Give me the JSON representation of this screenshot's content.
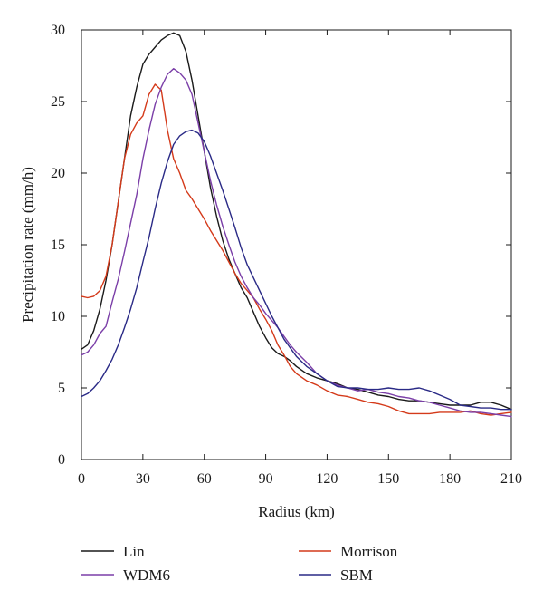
{
  "chart_data": {
    "type": "line",
    "title": "",
    "xlabel": "Radius (km)",
    "ylabel": "Precipitation rate (mm/h)",
    "xlim": [
      0,
      210
    ],
    "ylim": [
      0,
      30
    ],
    "xticks": [
      0,
      30,
      60,
      90,
      120,
      150,
      180,
      210
    ],
    "yticks": [
      0,
      5,
      10,
      15,
      20,
      25,
      30
    ],
    "grid": false,
    "legend_placement": "bottom",
    "series": [
      {
        "name": "Lin",
        "color": "#1a1a1a",
        "x": [
          0,
          3,
          6,
          9,
          12,
          15,
          18,
          21,
          24,
          27,
          30,
          33,
          36,
          39,
          42,
          45,
          48,
          51,
          54,
          57,
          60,
          63,
          66,
          69,
          72,
          75,
          78,
          81,
          84,
          87,
          90,
          93,
          96,
          99,
          102,
          105,
          110,
          115,
          120,
          125,
          130,
          135,
          140,
          145,
          150,
          155,
          160,
          165,
          170,
          175,
          180,
          185,
          190,
          195,
          200,
          205,
          210
        ],
        "y": [
          7.7,
          8.0,
          9.0,
          10.5,
          12.5,
          15.0,
          18.0,
          21.0,
          24.0,
          26.0,
          27.6,
          28.3,
          28.8,
          29.3,
          29.6,
          29.8,
          29.6,
          28.5,
          26.5,
          24.0,
          21.5,
          19.0,
          17.0,
          15.3,
          14.0,
          13.0,
          12.0,
          11.3,
          10.3,
          9.3,
          8.5,
          7.8,
          7.4,
          7.2,
          6.9,
          6.5,
          6.0,
          5.7,
          5.5,
          5.3,
          5.0,
          4.9,
          4.7,
          4.5,
          4.4,
          4.2,
          4.1,
          4.1,
          4.0,
          3.9,
          3.8,
          3.8,
          3.8,
          4.0,
          4.0,
          3.8,
          3.5
        ]
      },
      {
        "name": "Morrison",
        "color": "#d43a1a",
        "x": [
          0,
          3,
          6,
          9,
          12,
          15,
          18,
          21,
          24,
          27,
          30,
          33,
          36,
          39,
          42,
          45,
          48,
          51,
          54,
          57,
          60,
          63,
          66,
          69,
          72,
          75,
          78,
          81,
          84,
          87,
          90,
          93,
          96,
          99,
          102,
          105,
          110,
          115,
          120,
          125,
          130,
          135,
          140,
          145,
          150,
          155,
          160,
          165,
          170,
          175,
          180,
          185,
          190,
          195,
          200,
          205,
          210
        ],
        "y": [
          11.4,
          11.3,
          11.4,
          11.8,
          12.8,
          15.0,
          18.0,
          21.0,
          22.7,
          23.5,
          24.0,
          25.5,
          26.2,
          25.8,
          23.0,
          21.0,
          20.0,
          18.8,
          18.2,
          17.5,
          16.8,
          16.0,
          15.3,
          14.6,
          13.8,
          13.0,
          12.3,
          11.8,
          11.3,
          10.5,
          9.8,
          9.0,
          8.0,
          7.3,
          6.5,
          6.0,
          5.5,
          5.2,
          4.8,
          4.5,
          4.4,
          4.2,
          4.0,
          3.9,
          3.7,
          3.4,
          3.2,
          3.2,
          3.2,
          3.3,
          3.3,
          3.3,
          3.4,
          3.2,
          3.1,
          3.2,
          3.3
        ]
      },
      {
        "name": "WDM6",
        "color": "#7b3fa8",
        "x": [
          0,
          3,
          6,
          9,
          12,
          15,
          18,
          21,
          24,
          27,
          30,
          33,
          36,
          39,
          42,
          45,
          48,
          51,
          54,
          57,
          60,
          63,
          66,
          69,
          72,
          75,
          78,
          81,
          84,
          87,
          90,
          93,
          96,
          99,
          102,
          105,
          110,
          115,
          120,
          125,
          130,
          135,
          140,
          145,
          150,
          155,
          160,
          165,
          170,
          175,
          180,
          185,
          190,
          195,
          200,
          205,
          210
        ],
        "y": [
          7.3,
          7.5,
          8.0,
          8.8,
          9.3,
          11.0,
          12.6,
          14.5,
          16.5,
          18.5,
          21.0,
          23.0,
          24.8,
          26.0,
          26.9,
          27.3,
          27.0,
          26.5,
          25.5,
          23.5,
          21.5,
          19.5,
          17.8,
          16.3,
          15.0,
          13.8,
          12.8,
          12.0,
          11.3,
          10.8,
          10.2,
          9.7,
          9.2,
          8.6,
          8.0,
          7.5,
          6.8,
          6.0,
          5.5,
          5.2,
          5.0,
          4.8,
          4.9,
          4.7,
          4.6,
          4.4,
          4.3,
          4.1,
          4.0,
          3.8,
          3.6,
          3.4,
          3.3,
          3.3,
          3.2,
          3.1,
          3.0
        ]
      },
      {
        "name": "SBM",
        "color": "#2a2a86",
        "x": [
          0,
          3,
          6,
          9,
          12,
          15,
          18,
          21,
          24,
          27,
          30,
          33,
          36,
          39,
          42,
          45,
          48,
          51,
          54,
          57,
          60,
          63,
          66,
          69,
          72,
          75,
          78,
          81,
          84,
          87,
          90,
          93,
          96,
          99,
          102,
          105,
          110,
          115,
          120,
          125,
          130,
          135,
          140,
          145,
          150,
          155,
          160,
          165,
          170,
          175,
          180,
          185,
          190,
          195,
          200,
          205,
          210
        ],
        "y": [
          4.4,
          4.6,
          5.0,
          5.5,
          6.2,
          7.0,
          8.0,
          9.2,
          10.5,
          12.0,
          13.8,
          15.5,
          17.5,
          19.3,
          20.8,
          22.0,
          22.6,
          22.9,
          23.0,
          22.8,
          22.2,
          21.2,
          20.0,
          18.8,
          17.5,
          16.2,
          14.8,
          13.6,
          12.7,
          11.8,
          10.9,
          10.0,
          9.2,
          8.4,
          7.8,
          7.2,
          6.5,
          6.0,
          5.5,
          5.1,
          5.0,
          5.0,
          4.9,
          4.9,
          5.0,
          4.9,
          4.9,
          5.0,
          4.8,
          4.5,
          4.2,
          3.8,
          3.7,
          3.6,
          3.6,
          3.5,
          3.5
        ]
      }
    ]
  }
}
